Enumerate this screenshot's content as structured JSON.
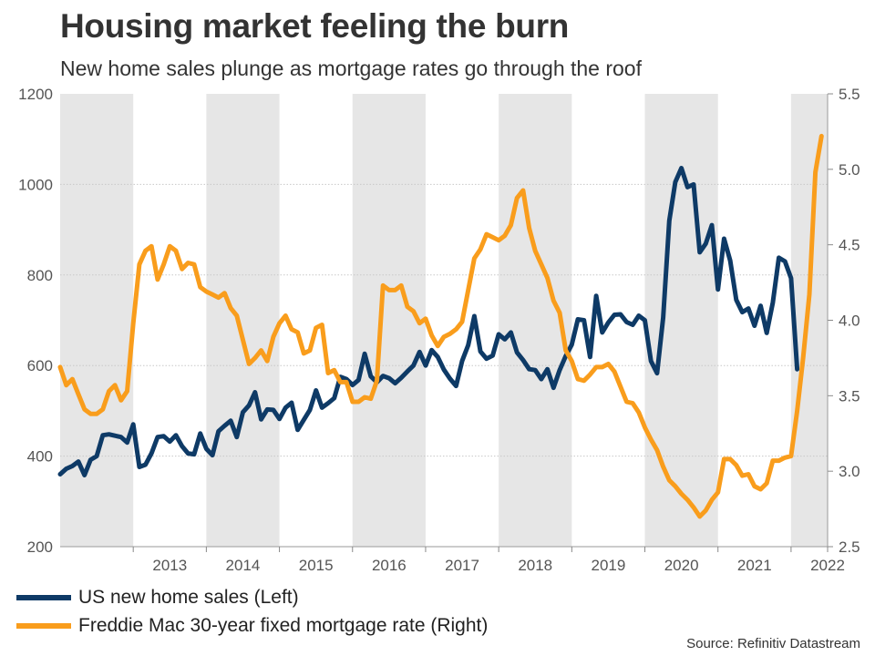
{
  "chart_data": {
    "type": "line",
    "title": "Housing market feeling the burn",
    "subtitle": "New home sales plunge as mortgage rates go through the roof",
    "source": "Source: Refinitiv Datastream",
    "x_start": 2012.0,
    "x_step": 0.0833333,
    "xlim": [
      2012.0,
      2022.5
    ],
    "xticks": [
      "2013",
      "2014",
      "2015",
      "2016",
      "2017",
      "2018",
      "2019",
      "2020",
      "2021",
      "2022"
    ],
    "shaded_years": [
      2012,
      2014,
      2016,
      2018,
      2020,
      2022
    ],
    "y_left": {
      "min": 200,
      "max": 1200,
      "ticks": [
        "200",
        "400",
        "600",
        "800",
        "1000",
        "1200"
      ],
      "grid": true
    },
    "y_right": {
      "min": 2.5,
      "max": 5.5,
      "ticks": [
        "2.5",
        "3.0",
        "3.5",
        "4.0",
        "4.5",
        "5.0",
        "5.5"
      ]
    },
    "series": [
      {
        "name": "US new home sales (Left)",
        "axis": "left",
        "color": "#0e3a66",
        "values": [
          360,
          372,
          378,
          388,
          358,
          392,
          400,
          446,
          448,
          445,
          442,
          430,
          470,
          376,
          381,
          406,
          442,
          444,
          432,
          446,
          422,
          406,
          404,
          450,
          416,
          402,
          455,
          467,
          478,
          442,
          497,
          512,
          541,
          481,
          503,
          502,
          482,
          507,
          518,
          458,
          480,
          502,
          545,
          507,
          517,
          528,
          575,
          570,
          557,
          568,
          626,
          576,
          563,
          577,
          572,
          561,
          573,
          587,
          600,
          630,
          600,
          634,
          619,
          591,
          571,
          555,
          610,
          645,
          709,
          631,
          615,
          622,
          669,
          658,
          673,
          629,
          612,
          592,
          590,
          570,
          592,
          551,
          590,
          621,
          646,
          702,
          700,
          619,
          754,
          673,
          695,
          712,
          713,
          696,
          690,
          710,
          700,
          610,
          583,
          706,
          920,
          1005,
          1036,
          994,
          1000,
          850,
          869,
          910,
          768,
          880,
          832,
          745,
          718,
          726,
          688,
          732,
          672,
          739,
          838,
          830,
          793,
          592
        ]
      },
      {
        "name": "Freddie Mac 30-year fixed mortgage rate (Right)",
        "axis": "right",
        "color": "#f99d1c",
        "values": [
          3.69,
          3.57,
          3.61,
          3.51,
          3.41,
          3.38,
          3.38,
          3.41,
          3.53,
          3.57,
          3.47,
          3.53,
          3.98,
          4.37,
          4.46,
          4.49,
          4.27,
          4.37,
          4.49,
          4.46,
          4.34,
          4.38,
          4.37,
          4.22,
          4.19,
          4.17,
          4.15,
          4.18,
          4.08,
          4.03,
          3.87,
          3.71,
          3.75,
          3.8,
          3.73,
          3.89,
          3.98,
          4.03,
          3.94,
          3.92,
          3.78,
          3.8,
          3.95,
          3.97,
          3.65,
          3.67,
          3.59,
          3.59,
          3.46,
          3.46,
          3.49,
          3.48,
          3.6,
          4.23,
          4.2,
          4.2,
          4.23,
          4.09,
          4.06,
          3.98,
          4.01,
          3.9,
          3.83,
          3.89,
          3.91,
          3.94,
          3.99,
          4.2,
          4.41,
          4.47,
          4.57,
          4.55,
          4.53,
          4.56,
          4.63,
          4.81,
          4.86,
          4.61,
          4.46,
          4.37,
          4.28,
          4.13,
          4.05,
          3.8,
          3.73,
          3.61,
          3.6,
          3.64,
          3.69,
          3.69,
          3.71,
          3.66,
          3.56,
          3.46,
          3.45,
          3.39,
          3.29,
          3.21,
          3.14,
          3.03,
          2.94,
          2.9,
          2.85,
          2.81,
          2.76,
          2.7,
          2.74,
          2.81,
          2.86,
          3.08,
          3.08,
          3.04,
          2.97,
          2.98,
          2.9,
          2.88,
          2.92,
          3.07,
          3.07,
          3.09,
          3.1,
          3.4,
          3.76,
          4.17,
          4.98,
          5.22
        ]
      }
    ]
  }
}
